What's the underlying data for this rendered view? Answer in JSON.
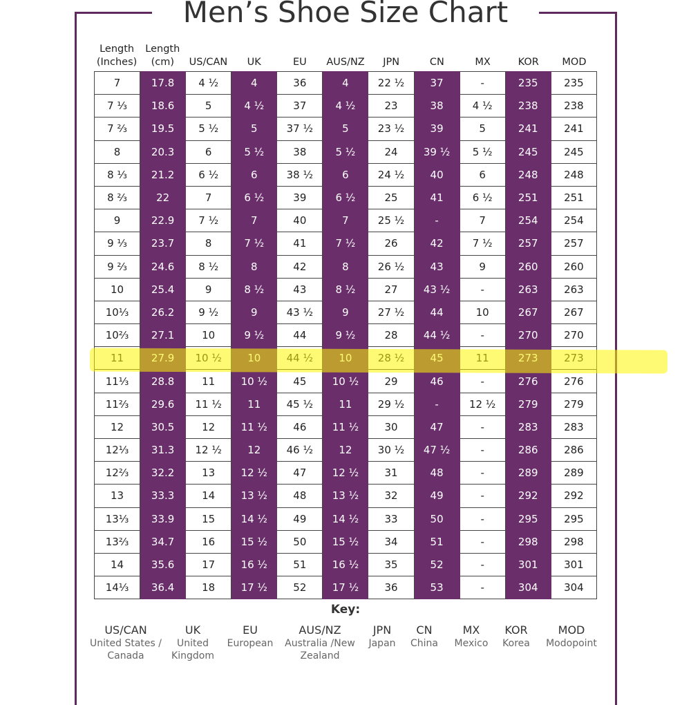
{
  "title": "Men’s Shoe Size Chart",
  "table": {
    "header": [
      "Length (Inches)",
      "Length (cm)",
      "US/CAN",
      "UK",
      "EU",
      "AUS/NZ",
      "JPN",
      "CN",
      "MX",
      "KOR",
      "MOD"
    ],
    "rows": [
      [
        "7",
        "17.8",
        "4 ½",
        "4",
        "36",
        "4",
        "22 ½",
        "37",
        "-",
        "235",
        "235"
      ],
      [
        "7 ⅓",
        "18.6",
        "5",
        "4 ½",
        "37",
        "4 ½",
        "23",
        "38",
        "4 ½",
        "238",
        "238"
      ],
      [
        "7 ⅔",
        "19.5",
        "5 ½",
        "5",
        "37 ½",
        "5",
        "23 ½",
        "39",
        "5",
        "241",
        "241"
      ],
      [
        "8",
        "20.3",
        "6",
        "5 ½",
        "38",
        "5 ½",
        "24",
        "39 ½",
        "5 ½",
        "245",
        "245"
      ],
      [
        "8 ⅓",
        "21.2",
        "6 ½",
        "6",
        "38 ½",
        "6",
        "24 ½",
        "40",
        "6",
        "248",
        "248"
      ],
      [
        "8 ⅔",
        "22",
        "7",
        "6 ½",
        "39",
        "6 ½",
        "25",
        "41",
        "6 ½",
        "251",
        "251"
      ],
      [
        "9",
        "22.9",
        "7 ½",
        "7",
        "40",
        "7",
        "25 ½",
        "-",
        "7",
        "254",
        "254"
      ],
      [
        "9 ⅓",
        "23.7",
        "8",
        "7 ½",
        "41",
        "7 ½",
        "26",
        "42",
        "7 ½",
        "257",
        "257"
      ],
      [
        "9 ⅔",
        "24.6",
        "8 ½",
        "8",
        "42",
        "8",
        "26 ½",
        "43",
        "9",
        "260",
        "260"
      ],
      [
        "10",
        "25.4",
        "9",
        "8 ½",
        "43",
        "8 ½",
        "27",
        "43 ½",
        "-",
        "263",
        "263"
      ],
      [
        "10⅓",
        "26.2",
        "9 ½",
        "9",
        "43 ½",
        "9",
        "27 ½",
        "44",
        "10",
        "267",
        "267"
      ],
      [
        "10⅔",
        "27.1",
        "10",
        "9 ½",
        "44",
        "9 ½",
        "28",
        "44 ½",
        "-",
        "270",
        "270"
      ],
      [
        "11",
        "27.9",
        "10 ½",
        "10",
        "44 ½",
        "10",
        "28 ½",
        "45",
        "11",
        "273",
        "273"
      ],
      [
        "11⅓",
        "28.8",
        "11",
        "10 ½",
        "45",
        "10 ½",
        "29",
        "46",
        "-",
        "276",
        "276"
      ],
      [
        "11⅔",
        "29.6",
        "11 ½",
        "11",
        "45 ½",
        "11",
        "29 ½",
        "-",
        "12 ½",
        "279",
        "279"
      ],
      [
        "12",
        "30.5",
        "12",
        "11 ½",
        "46",
        "11 ½",
        "30",
        "47",
        "-",
        "283",
        "283"
      ],
      [
        "12⅓",
        "31.3",
        "12 ½",
        "12",
        "46 ½",
        "12",
        "30 ½",
        "47 ½",
        "-",
        "286",
        "286"
      ],
      [
        "12⅔",
        "32.2",
        "13",
        "12 ½",
        "47",
        "12 ½",
        "31",
        "48",
        "-",
        "289",
        "289"
      ],
      [
        "13",
        "33.3",
        "14",
        "13 ½",
        "48",
        "13 ½",
        "32",
        "49",
        "-",
        "292",
        "292"
      ],
      [
        "13⅓",
        "33.9",
        "15",
        "14 ½",
        "49",
        "14 ½",
        "33",
        "50",
        "-",
        "295",
        "295"
      ],
      [
        "13⅔",
        "34.7",
        "16",
        "15 ½",
        "50",
        "15 ½",
        "34",
        "51",
        "-",
        "298",
        "298"
      ],
      [
        "14",
        "35.6",
        "17",
        "16 ½",
        "51",
        "16 ½",
        "35",
        "52",
        "-",
        "301",
        "301"
      ],
      [
        "14⅓",
        "36.4",
        "18",
        "17 ½",
        "52",
        "17 ½",
        "36",
        "53",
        "-",
        "304",
        "304"
      ]
    ]
  },
  "key": {
    "title": "Key:",
    "items": [
      {
        "abbr": "US/CAN",
        "name": "United States / Canada"
      },
      {
        "abbr": "UK",
        "name": "United Kingdom"
      },
      {
        "abbr": "EU",
        "name": "European"
      },
      {
        "abbr": "AUS/NZ",
        "name": "Australia /New Zealand"
      },
      {
        "abbr": "JPN",
        "name": "Japan"
      },
      {
        "abbr": "CN",
        "name": "China"
      },
      {
        "abbr": "MX",
        "name": "Mexico"
      },
      {
        "abbr": "KOR",
        "name": "Korea"
      },
      {
        "abbr": "MOD",
        "name": "Modopoint"
      }
    ]
  }
}
